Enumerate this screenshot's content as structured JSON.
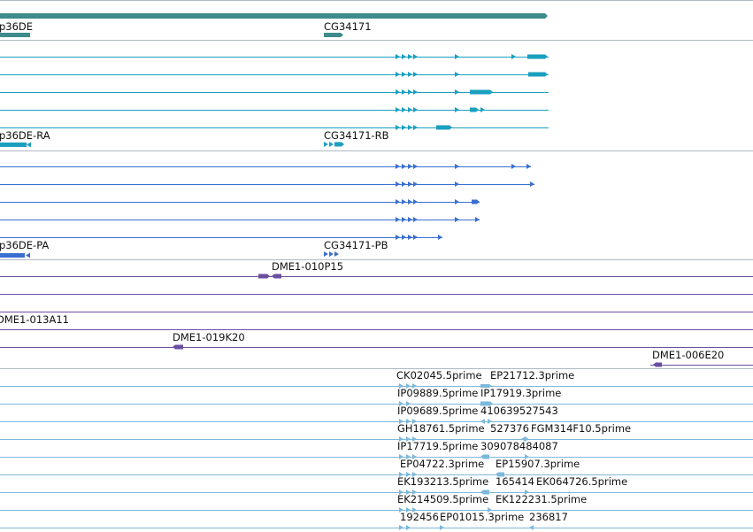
{
  "colors": {
    "gene": "#3d8b8b",
    "transcript": "#1a9fbf",
    "protein": "#3a6fcf",
    "clone": "#6a4fa0",
    "est": "#7db8dc",
    "divider": "#b0b8c4"
  },
  "gene_track": {
    "labels": [
      "p36DE",
      "CG34171"
    ]
  },
  "transcript_track": {
    "labels": [
      "p36DE-RA",
      "CG34171-RB"
    ]
  },
  "protein_track": {
    "labels": [
      "p36DE-PA",
      "CG34171-PB"
    ]
  },
  "clone_track": {
    "labels": [
      "DME1-010P15",
      "DME1-013A11",
      "DME1-019K20",
      "DME1-006E20"
    ]
  },
  "est_track": {
    "labels": [
      "CK02045.5prime",
      "EP21712.3prime",
      "IP09889.5prime",
      "IP17919.3prime",
      "IP09689.5prime",
      "410639527543",
      "GH18761.5prime",
      "527376",
      "FGM314F10.5prime",
      "IP17719.5prime",
      "309078484087",
      "EP04722.3prime",
      "EP15907.3prime",
      "EK193213.5prime",
      "165414",
      "EK064726.5prime",
      "EK214509.5prime",
      "EK122231.5prime",
      "192456",
      "EP01015.3prime",
      "236817"
    ]
  }
}
